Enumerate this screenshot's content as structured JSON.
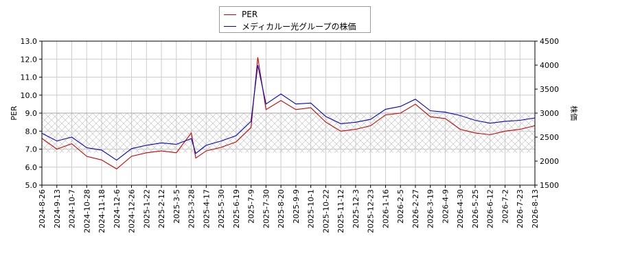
{
  "chart_data": {
    "type": "line",
    "legend": {
      "placement": "top-center",
      "entries": [
        {
          "label": "PER",
          "color": "#cc0000"
        },
        {
          "label": "メディカルー光グループの株価",
          "color": "#0000cc"
        }
      ]
    },
    "y_left_label": "PER",
    "y_right_label": "株価",
    "y_left_range": [
      5.0,
      13.0
    ],
    "y_right_range": [
      1500,
      4500
    ],
    "y_left_ticks": [
      "5.0",
      "6.0",
      "7.0",
      "8.0",
      "9.0",
      "10.0",
      "11.0",
      "12.0",
      "13.0"
    ],
    "y_right_ticks": [
      "1500",
      "2000",
      "2500",
      "3000",
      "3500",
      "4000",
      "4500"
    ],
    "x_tick_labels": [
      "2024-8-26",
      "2024-9-13",
      "2024-10-7",
      "2024-10-28",
      "2024-11-18",
      "2024-12-6",
      "2024-12-26",
      "2025-1-22",
      "2025-2-12",
      "2025-3-5",
      "2025-3-28",
      "2025-4-17",
      "2025-5-30",
      "2025-6-19",
      "2025-7-9",
      "2025-7-30",
      "2025-8-20",
      "2025-9-9",
      "2025-10-1",
      "2025-10-22",
      "2025-11-12",
      "2025-12-3",
      "2025-12-23",
      "2026-1-16",
      "2026-2-5",
      "2026-2-27",
      "2026-3-19",
      "2026-4-9",
      "2026-4-30",
      "2026-5-25",
      "2026-6-12",
      "2026-7-2",
      "2026-7-23",
      "2026-8-13"
    ],
    "shaded_band_left": [
      6.8,
      9.0
    ],
    "grid": true,
    "series": [
      {
        "name": "PER",
        "axis": "left",
        "color": "#cc0000",
        "points": [
          [
            0,
            7.6
          ],
          [
            1,
            7.0
          ],
          [
            2,
            7.3
          ],
          [
            3,
            6.6
          ],
          [
            4,
            6.4
          ],
          [
            5,
            5.9
          ],
          [
            6,
            6.6
          ],
          [
            7,
            6.8
          ],
          [
            8,
            6.9
          ],
          [
            9,
            6.8
          ],
          [
            10,
            7.9
          ],
          [
            10.3,
            6.5
          ],
          [
            11,
            6.9
          ],
          [
            12,
            7.1
          ],
          [
            13,
            7.4
          ],
          [
            14,
            8.2
          ],
          [
            14.45,
            12.1
          ],
          [
            15,
            9.2
          ],
          [
            16,
            9.7
          ],
          [
            17,
            9.2
          ],
          [
            18,
            9.3
          ],
          [
            19,
            8.5
          ],
          [
            20,
            8.0
          ],
          [
            21,
            8.1
          ],
          [
            22,
            8.3
          ],
          [
            23,
            8.9
          ],
          [
            24,
            9.0
          ],
          [
            25,
            9.5
          ],
          [
            26,
            8.8
          ],
          [
            27,
            8.7
          ],
          [
            28,
            8.1
          ],
          [
            29,
            7.9
          ],
          [
            30,
            7.8
          ],
          [
            31,
            8.0
          ],
          [
            32,
            8.1
          ],
          [
            33,
            8.3
          ]
        ]
      },
      {
        "name": "メディカルー光グループの株価",
        "axis": "right",
        "color": "#0000cc",
        "points": [
          [
            0,
            2580
          ],
          [
            1,
            2420
          ],
          [
            2,
            2500
          ],
          [
            3,
            2280
          ],
          [
            4,
            2230
          ],
          [
            5,
            2020
          ],
          [
            6,
            2260
          ],
          [
            7,
            2330
          ],
          [
            8,
            2380
          ],
          [
            9,
            2350
          ],
          [
            10,
            2470
          ],
          [
            10.3,
            2160
          ],
          [
            11,
            2330
          ],
          [
            12,
            2420
          ],
          [
            13,
            2530
          ],
          [
            14,
            2830
          ],
          [
            14.45,
            4000
          ],
          [
            15,
            3190
          ],
          [
            16,
            3400
          ],
          [
            17,
            3190
          ],
          [
            18,
            3210
          ],
          [
            19,
            2930
          ],
          [
            20,
            2780
          ],
          [
            21,
            2810
          ],
          [
            22,
            2870
          ],
          [
            23,
            3080
          ],
          [
            24,
            3140
          ],
          [
            25,
            3290
          ],
          [
            26,
            3050
          ],
          [
            27,
            3020
          ],
          [
            28,
            2950
          ],
          [
            29,
            2850
          ],
          [
            30,
            2790
          ],
          [
            31,
            2830
          ],
          [
            32,
            2850
          ],
          [
            33,
            2900
          ]
        ]
      }
    ]
  }
}
